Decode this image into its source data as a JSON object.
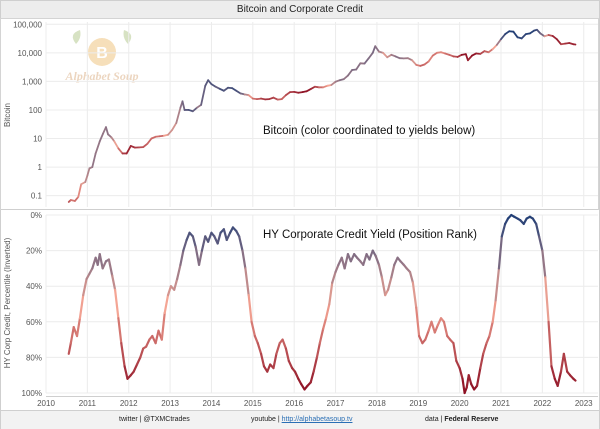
{
  "chart_data": [
    {
      "type": "line",
      "title": "Bitcoin and Corporate Credit",
      "ylabel": "Bitcoin",
      "yscale": "log",
      "ylim": [
        0.04,
        120000
      ],
      "yticks": [
        0.1,
        1,
        10,
        100,
        1000,
        10000,
        100000
      ],
      "ytick_labels": [
        "0.1",
        "1",
        "10",
        "100",
        "1,000",
        "10,000",
        "100,000"
      ],
      "annotation": "Bitcoin (color coordinated to yields below)",
      "x": [
        2010.55,
        2010.6,
        2010.7,
        2010.78,
        2010.85,
        2010.95,
        2011.0,
        2011.05,
        2011.12,
        2011.2,
        2011.3,
        2011.38,
        2011.45,
        2011.5,
        2011.58,
        2011.65,
        2011.75,
        2011.85,
        2011.95,
        2012.05,
        2012.15,
        2012.25,
        2012.35,
        2012.45,
        2012.55,
        2012.65,
        2012.75,
        2012.85,
        2012.95,
        2013.05,
        2013.15,
        2013.25,
        2013.3,
        2013.35,
        2013.45,
        2013.55,
        2013.65,
        2013.75,
        2013.85,
        2013.92,
        2014.0,
        2014.1,
        2014.2,
        2014.3,
        2014.4,
        2014.5,
        2014.6,
        2014.7,
        2014.8,
        2014.9,
        2015.0,
        2015.1,
        2015.2,
        2015.3,
        2015.4,
        2015.5,
        2015.6,
        2015.7,
        2015.8,
        2015.9,
        2016.0,
        2016.1,
        2016.2,
        2016.3,
        2016.4,
        2016.5,
        2016.6,
        2016.7,
        2016.8,
        2016.9,
        2017.0,
        2017.1,
        2017.2,
        2017.3,
        2017.4,
        2017.5,
        2017.6,
        2017.7,
        2017.8,
        2017.9,
        2017.96,
        2018.05,
        2018.15,
        2018.25,
        2018.35,
        2018.45,
        2018.55,
        2018.65,
        2018.75,
        2018.85,
        2018.95,
        2019.05,
        2019.15,
        2019.25,
        2019.35,
        2019.45,
        2019.55,
        2019.65,
        2019.75,
        2019.85,
        2019.95,
        2020.05,
        2020.15,
        2020.2,
        2020.3,
        2020.4,
        2020.5,
        2020.6,
        2020.7,
        2020.8,
        2020.9,
        2021.0,
        2021.1,
        2021.2,
        2021.3,
        2021.4,
        2021.5,
        2021.6,
        2021.7,
        2021.8,
        2021.87,
        2021.95,
        2022.05,
        2022.15,
        2022.25,
        2022.35,
        2022.45,
        2022.55,
        2022.65,
        2022.75,
        2022.8
      ],
      "values": [
        0.06,
        0.07,
        0.065,
        0.09,
        0.25,
        0.3,
        0.5,
        0.9,
        1.0,
        3.0,
        8.0,
        15.0,
        25.0,
        14.0,
        11.0,
        8.0,
        4.5,
        3.0,
        3.0,
        5.5,
        4.8,
        4.9,
        5.0,
        6.5,
        10.0,
        11.5,
        12.0,
        12.5,
        13.5,
        20.0,
        35.0,
        120.0,
        200.0,
        100.0,
        100.0,
        90.0,
        120.0,
        150.0,
        700.0,
        1100.0,
        800.0,
        650.0,
        550.0,
        470.0,
        600.0,
        580.0,
        470.0,
        380.0,
        350.0,
        330.0,
        250.0,
        240.0,
        250.0,
        235.0,
        240.0,
        270.0,
        230.0,
        240.0,
        330.0,
        420.0,
        430.0,
        400.0,
        420.0,
        450.0,
        540.0,
        650.0,
        620.0,
        620.0,
        700.0,
        750.0,
        970.0,
        1100.0,
        1200.0,
        1600.0,
        2500.0,
        2600.0,
        4300.0,
        4200.0,
        6400.0,
        10000.0,
        17000.0,
        11000.0,
        10000.0,
        7000.0,
        8500.0,
        7500.0,
        6500.0,
        6400.0,
        6500.0,
        5500.0,
        3800.0,
        3500.0,
        3900.0,
        5000.0,
        8000.0,
        10000.0,
        10500.0,
        9500.0,
        8500.0,
        7500.0,
        7200.0,
        8500.0,
        9000.0,
        5500.0,
        8000.0,
        9500.0,
        9200.0,
        11500.0,
        10500.0,
        13500.0,
        19000.0,
        30000.0,
        45000.0,
        57000.0,
        55000.0,
        35000.0,
        32000.0,
        45000.0,
        48000.0,
        60000.0,
        64000.0,
        48000.0,
        38000.0,
        42000.0,
        39000.0,
        30000.0,
        20000.0,
        21000.0,
        22000.0,
        20000.0,
        19500.0
      ]
    },
    {
      "type": "line",
      "ylabel": "HY Corp Credit, Percentile (Inverted)",
      "annotation": "HY Corporate Credit Yield (Position Rank)",
      "ylim": [
        0,
        100
      ],
      "y_inverted": true,
      "yticks": [
        0,
        20,
        40,
        60,
        80,
        100
      ],
      "ytick_labels": [
        "0%",
        "20%",
        "40%",
        "60%",
        "80%",
        "100%"
      ],
      "xlim": [
        2010,
        2023.2
      ],
      "xticks": [
        2010,
        2011,
        2012,
        2013,
        2014,
        2015,
        2016,
        2017,
        2018,
        2019,
        2020,
        2021,
        2022,
        2023
      ],
      "xtick_labels": [
        "2010",
        "2011",
        "2012",
        "2013",
        "2014",
        "2015",
        "2016",
        "2017",
        "2018",
        "2019",
        "2020",
        "2021",
        "2022",
        "2023"
      ],
      "color_scale": {
        "low": "#1f3d75",
        "mid": "#f4a594",
        "high": "#8a0b20"
      },
      "x": [
        2010.55,
        2010.6,
        2010.67,
        2010.75,
        2010.82,
        2010.9,
        2010.98,
        2011.05,
        2011.12,
        2011.2,
        2011.25,
        2011.3,
        2011.37,
        2011.45,
        2011.52,
        2011.6,
        2011.67,
        2011.75,
        2011.82,
        2011.9,
        2011.97,
        2012.05,
        2012.12,
        2012.2,
        2012.28,
        2012.35,
        2012.42,
        2012.5,
        2012.57,
        2012.65,
        2012.72,
        2012.8,
        2012.87,
        2012.95,
        2013.02,
        2013.1,
        2013.17,
        2013.25,
        2013.32,
        2013.4,
        2013.47,
        2013.55,
        2013.62,
        2013.7,
        2013.77,
        2013.85,
        2013.92,
        2014.0,
        2014.07,
        2014.15,
        2014.22,
        2014.3,
        2014.37,
        2014.45,
        2014.52,
        2014.6,
        2014.67,
        2014.75,
        2014.82,
        2014.9,
        2014.97,
        2015.05,
        2015.12,
        2015.2,
        2015.27,
        2015.35,
        2015.42,
        2015.5,
        2015.57,
        2015.65,
        2015.72,
        2015.8,
        2015.87,
        2015.95,
        2016.02,
        2016.1,
        2016.17,
        2016.25,
        2016.32,
        2016.4,
        2016.47,
        2016.55,
        2016.62,
        2016.7,
        2016.77,
        2016.85,
        2016.92,
        2017.0,
        2017.07,
        2017.15,
        2017.22,
        2017.3,
        2017.37,
        2017.45,
        2017.52,
        2017.6,
        2017.67,
        2017.75,
        2017.82,
        2017.9,
        2017.97,
        2018.05,
        2018.12,
        2018.2,
        2018.27,
        2018.35,
        2018.42,
        2018.5,
        2018.57,
        2018.65,
        2018.72,
        2018.8,
        2018.87,
        2018.95,
        2019.02,
        2019.1,
        2019.17,
        2019.25,
        2019.32,
        2019.4,
        2019.47,
        2019.55,
        2019.62,
        2019.7,
        2019.77,
        2019.85,
        2019.92,
        2020.0,
        2020.07,
        2020.12,
        2020.17,
        2020.22,
        2020.28,
        2020.35,
        2020.42,
        2020.5,
        2020.57,
        2020.65,
        2020.72,
        2020.8,
        2020.87,
        2020.95,
        2021.02,
        2021.1,
        2021.17,
        2021.25,
        2021.32,
        2021.4,
        2021.47,
        2021.55,
        2021.62,
        2021.7,
        2021.77,
        2021.85,
        2021.92,
        2022.0,
        2022.07,
        2022.15,
        2022.22,
        2022.3,
        2022.37,
        2022.45,
        2022.52,
        2022.6,
        2022.67,
        2022.75,
        2022.8
      ],
      "values": [
        78,
        72,
        63,
        68,
        58,
        45,
        36,
        33,
        30,
        24,
        28,
        22,
        30,
        26,
        25,
        34,
        42,
        58,
        72,
        85,
        92,
        90,
        88,
        84,
        80,
        75,
        74,
        70,
        68,
        72,
        65,
        70,
        55,
        45,
        40,
        42,
        36,
        28,
        20,
        14,
        10,
        12,
        18,
        28,
        20,
        12,
        15,
        10,
        12,
        16,
        10,
        8,
        14,
        10,
        7,
        9,
        12,
        20,
        30,
        45,
        60,
        68,
        72,
        78,
        85,
        88,
        84,
        86,
        78,
        72,
        70,
        75,
        82,
        86,
        88,
        92,
        95,
        98,
        96,
        94,
        88,
        80,
        72,
        64,
        58,
        50,
        38,
        32,
        28,
        24,
        30,
        22,
        26,
        22,
        24,
        26,
        28,
        22,
        25,
        20,
        23,
        28,
        35,
        45,
        42,
        35,
        28,
        24,
        26,
        28,
        30,
        32,
        38,
        52,
        68,
        72,
        70,
        65,
        60,
        66,
        62,
        58,
        60,
        68,
        70,
        72,
        82,
        86,
        92,
        100,
        97,
        90,
        95,
        98,
        96,
        86,
        78,
        72,
        68,
        60,
        48,
        30,
        12,
        5,
        2,
        0,
        1,
        2,
        3,
        5,
        2,
        1,
        2,
        5,
        12,
        20,
        35,
        60,
        85,
        92,
        96,
        88,
        78,
        88,
        90,
        92,
        93
      ]
    }
  ],
  "watermark": {
    "logo_text": "Alphabet Soup",
    "logo_letter": "B"
  },
  "footer": {
    "twitter": "twitter | @TXMCtrades",
    "youtube_prefix": "youtube | ",
    "youtube_link": "http://alphabetasoup.tv",
    "data_prefix": "data | ",
    "data_source": "Federal Reserve"
  }
}
